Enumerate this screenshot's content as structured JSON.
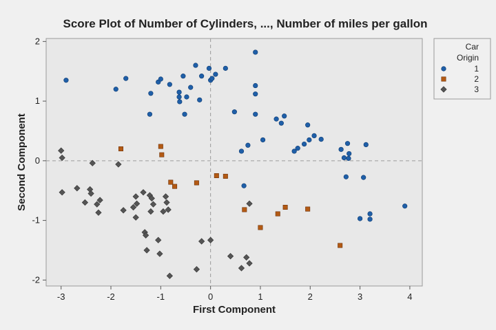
{
  "chart_data": {
    "type": "scatter",
    "title": "Score Plot of Number of Cylinders, ..., Number of miles per gallon",
    "xlabel": "First Component",
    "ylabel": "Second Component",
    "xlim": [
      -3.3,
      4.25
    ],
    "ylim": [
      -2.1,
      2.05
    ],
    "xticks": [
      -3,
      -2,
      -1,
      0,
      1,
      2,
      3,
      4
    ],
    "yticks": [
      -2,
      -1,
      0,
      1,
      2
    ],
    "reference_lines": {
      "x": 0,
      "y": 0
    },
    "legend": {
      "title": [
        "Car",
        "Origin"
      ],
      "placement": "right"
    },
    "series": [
      {
        "name": "1",
        "color": "#1f5fa8",
        "marker": "circle",
        "points": [
          [
            -2.9,
            1.35
          ],
          [
            -1.9,
            1.2
          ],
          [
            -1.7,
            1.38
          ],
          [
            -1.2,
            1.13
          ],
          [
            -1.22,
            0.78
          ],
          [
            -1.05,
            1.32
          ],
          [
            -1.0,
            1.37
          ],
          [
            -0.82,
            1.28
          ],
          [
            -0.63,
            1.15
          ],
          [
            -0.63,
            1.07
          ],
          [
            -0.62,
            0.99
          ],
          [
            -0.55,
            1.42
          ],
          [
            -0.52,
            0.78
          ],
          [
            -0.48,
            1.07
          ],
          [
            -0.4,
            1.23
          ],
          [
            -0.3,
            1.6
          ],
          [
            -0.22,
            1.02
          ],
          [
            -0.18,
            1.42
          ],
          [
            -0.03,
            1.55
          ],
          [
            0.0,
            1.35
          ],
          [
            0.03,
            1.38
          ],
          [
            0.1,
            1.45
          ],
          [
            0.3,
            1.55
          ],
          [
            0.48,
            0.82
          ],
          [
            0.62,
            0.16
          ],
          [
            0.67,
            -0.42
          ],
          [
            0.75,
            0.26
          ],
          [
            0.9,
            1.82
          ],
          [
            0.9,
            1.26
          ],
          [
            0.9,
            1.12
          ],
          [
            0.9,
            0.78
          ],
          [
            1.05,
            0.35
          ],
          [
            1.32,
            0.7
          ],
          [
            1.42,
            0.63
          ],
          [
            1.48,
            0.75
          ],
          [
            1.68,
            0.16
          ],
          [
            1.75,
            0.21
          ],
          [
            1.88,
            0.28
          ],
          [
            1.95,
            0.6
          ],
          [
            1.98,
            0.35
          ],
          [
            2.08,
            0.42
          ],
          [
            2.22,
            0.36
          ],
          [
            2.62,
            0.19
          ],
          [
            2.68,
            0.05
          ],
          [
            2.72,
            -0.27
          ],
          [
            2.75,
            0.29
          ],
          [
            2.77,
            0.04
          ],
          [
            2.78,
            0.12
          ],
          [
            3.0,
            -0.97
          ],
          [
            3.07,
            -0.28
          ],
          [
            3.12,
            0.27
          ],
          [
            3.2,
            -0.98
          ],
          [
            3.2,
            -0.89
          ],
          [
            3.9,
            -0.76
          ]
        ]
      },
      {
        "name": "2",
        "color": "#b35a14",
        "marker": "square",
        "points": [
          [
            -1.8,
            0.2
          ],
          [
            -1.0,
            0.24
          ],
          [
            -0.98,
            0.1
          ],
          [
            -0.8,
            -0.36
          ],
          [
            -0.72,
            -0.43
          ],
          [
            -0.28,
            -0.37
          ],
          [
            0.12,
            -0.25
          ],
          [
            0.3,
            -0.26
          ],
          [
            0.68,
            -0.82
          ],
          [
            1.0,
            -1.12
          ],
          [
            1.35,
            -0.89
          ],
          [
            1.5,
            -0.78
          ],
          [
            1.95,
            -0.81
          ],
          [
            2.6,
            -1.42
          ]
        ]
      },
      {
        "name": "3",
        "color": "#555555",
        "marker": "diamond",
        "points": [
          [
            -3.0,
            0.17
          ],
          [
            -2.98,
            0.05
          ],
          [
            -2.98,
            -0.53
          ],
          [
            -2.68,
            -0.46
          ],
          [
            -2.52,
            -0.7
          ],
          [
            -2.42,
            -0.48
          ],
          [
            -2.4,
            -0.55
          ],
          [
            -2.37,
            -0.04
          ],
          [
            -2.28,
            -0.73
          ],
          [
            -2.25,
            -0.87
          ],
          [
            -2.22,
            -0.66
          ],
          [
            -1.85,
            -0.06
          ],
          [
            -1.75,
            -0.83
          ],
          [
            -1.55,
            -0.78
          ],
          [
            -1.5,
            -0.6
          ],
          [
            -1.5,
            -0.95
          ],
          [
            -1.48,
            -0.72
          ],
          [
            -1.35,
            -0.53
          ],
          [
            -1.32,
            -1.2
          ],
          [
            -1.3,
            -1.25
          ],
          [
            -1.28,
            -1.5
          ],
          [
            -1.22,
            -0.58
          ],
          [
            -1.2,
            -0.85
          ],
          [
            -1.18,
            -0.63
          ],
          [
            -1.15,
            -0.73
          ],
          [
            -1.05,
            -1.33
          ],
          [
            -1.02,
            -1.56
          ],
          [
            -0.95,
            -0.85
          ],
          [
            -0.9,
            -0.6
          ],
          [
            -0.88,
            -0.7
          ],
          [
            -0.85,
            -0.82
          ],
          [
            -0.82,
            -1.93
          ],
          [
            -0.28,
            -1.82
          ],
          [
            -0.18,
            -1.35
          ],
          [
            0.0,
            -1.33
          ],
          [
            0.4,
            -1.6
          ],
          [
            0.62,
            -1.8
          ],
          [
            0.72,
            -1.62
          ],
          [
            0.78,
            -1.72
          ],
          [
            0.78,
            -0.72
          ]
        ]
      }
    ]
  }
}
